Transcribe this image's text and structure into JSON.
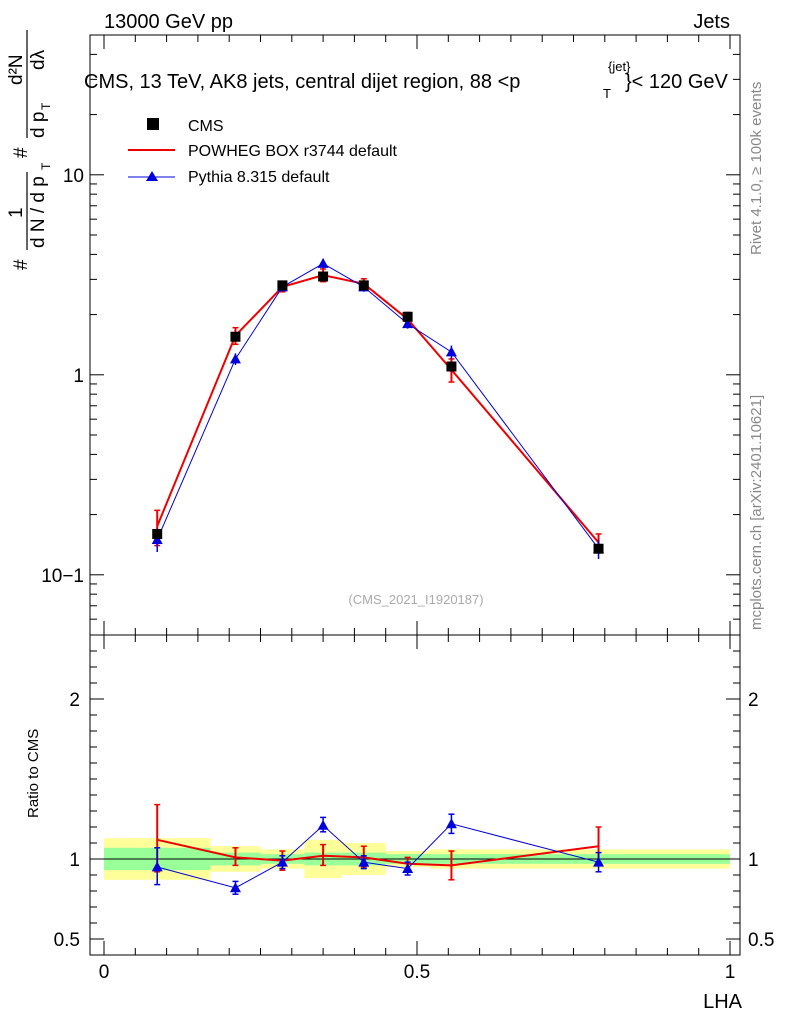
{
  "header": {
    "left": "13000 GeV pp",
    "right": "Jets"
  },
  "title_parts": {
    "main": "CMS, 13 TeV, AK8 jets, central dijet region, 88 <p",
    "sup": "{jet}",
    "sub": "T",
    "tail": "}< 120 GeV"
  },
  "side_labels": {
    "rivet": "Rivet 4.1.0, ≥ 100k events",
    "mcplots": "mcplots.cern.ch [arXiv:2401.10621]"
  },
  "watermark": "(CMS_2021_I1920187)",
  "y_axis_label": {
    "hash1": "#",
    "one": "1",
    "dN": "d N / d p",
    "T1": "T",
    "hash2": "#",
    "d2N": "d²N",
    "dpT": "d p",
    "T2": "T",
    "dlambda": "dλ"
  },
  "ratio_label": "Ratio to CMS",
  "x_label": "LHA",
  "colors": {
    "data": "#000000",
    "powheg": "#ee0000",
    "pythia": "#0000dd",
    "band_inner": "#99ff99",
    "band_outer": "#ffff99"
  },
  "chart_data": {
    "type": "line",
    "x_axis": {
      "label": "LHA",
      "range": [
        0,
        1
      ],
      "ticks": [
        0,
        0.5,
        1
      ],
      "tick_labels": [
        "0",
        "0.5",
        "1"
      ]
    },
    "main_panel": {
      "scale": "log",
      "y_range": [
        0.05,
        50
      ],
      "tick_values": [
        0.1,
        1,
        10
      ],
      "tick_labels": [
        "10−1",
        "1",
        "10"
      ]
    },
    "ratio_panel": {
      "label": "Ratio to CMS",
      "y_range": [
        0.4,
        2.4
      ],
      "tick_values": [
        0.5,
        1,
        2
      ],
      "tick_labels": [
        "0.5",
        "1",
        "2"
      ]
    },
    "legend": {
      "position": "top-left",
      "entries": [
        "CMS",
        "POWHEG BOX r3744 default",
        "Pythia 8.315 default"
      ]
    },
    "bins": [
      {
        "lo": 0.0,
        "hi": 0.17
      },
      {
        "lo": 0.17,
        "hi": 0.25
      },
      {
        "lo": 0.25,
        "hi": 0.32
      },
      {
        "lo": 0.32,
        "hi": 0.38
      },
      {
        "lo": 0.38,
        "hi": 0.45
      },
      {
        "lo": 0.45,
        "hi": 0.52
      },
      {
        "lo": 0.52,
        "hi": 0.6
      },
      {
        "lo": 0.6,
        "hi": 1.0
      }
    ],
    "series": [
      {
        "name": "CMS",
        "style": "markers-square",
        "x": [
          0.085,
          0.21,
          0.285,
          0.35,
          0.415,
          0.485,
          0.555,
          0.79
        ],
        "y": [
          0.16,
          1.55,
          2.8,
          3.1,
          2.8,
          1.95,
          1.1,
          0.135
        ]
      },
      {
        "name": "POWHEG BOX r3744 default",
        "style": "line",
        "x": [
          0.085,
          0.21,
          0.285,
          0.35,
          0.415,
          0.485,
          0.555,
          0.79
        ],
        "y": [
          0.175,
          1.57,
          2.75,
          3.15,
          2.85,
          1.9,
          1.06,
          0.145
        ],
        "err_lo": [
          0.14,
          1.42,
          2.6,
          2.92,
          2.68,
          1.75,
          0.92,
          0.13
        ],
        "err_hi": [
          0.21,
          1.72,
          2.92,
          3.38,
          3.02,
          2.05,
          1.2,
          0.16
        ],
        "ratio": [
          1.12,
          1.01,
          0.99,
          1.02,
          1.01,
          0.97,
          0.96,
          1.08
        ],
        "ratio_lo": [
          0.92,
          0.96,
          0.93,
          0.96,
          0.95,
          0.93,
          0.87,
          0.98
        ],
        "ratio_hi": [
          1.34,
          1.07,
          1.05,
          1.09,
          1.08,
          1.01,
          1.05,
          1.2
        ]
      },
      {
        "name": "Pythia 8.315 default",
        "style": "line-triangle",
        "x": [
          0.085,
          0.21,
          0.285,
          0.35,
          0.415,
          0.485,
          0.555,
          0.79
        ],
        "y": [
          0.15,
          1.2,
          2.75,
          3.6,
          2.75,
          1.8,
          1.3,
          0.135
        ],
        "err_lo": [
          0.13,
          1.12,
          2.62,
          3.4,
          2.6,
          1.7,
          1.2,
          0.12
        ],
        "err_hi": [
          0.17,
          1.28,
          2.88,
          3.8,
          2.9,
          1.9,
          1.4,
          0.15
        ],
        "ratio": [
          0.95,
          0.82,
          0.98,
          1.21,
          0.98,
          0.94,
          1.22,
          0.98
        ],
        "ratio_lo": [
          0.84,
          0.78,
          0.94,
          1.17,
          0.94,
          0.9,
          1.16,
          0.92
        ],
        "ratio_hi": [
          1.07,
          0.86,
          1.02,
          1.26,
          1.02,
          0.98,
          1.28,
          1.04
        ]
      }
    ],
    "uncertainty_band": {
      "inner_lo": [
        0.93,
        0.96,
        0.97,
        0.96,
        0.96,
        0.97,
        0.97,
        0.97
      ],
      "inner_hi": [
        1.07,
        1.04,
        1.03,
        1.04,
        1.04,
        1.03,
        1.03,
        1.03
      ],
      "outer_lo": [
        0.87,
        0.92,
        0.94,
        0.88,
        0.9,
        0.95,
        0.94,
        0.94
      ],
      "outer_hi": [
        1.13,
        1.08,
        1.06,
        1.12,
        1.1,
        1.05,
        1.06,
        1.06
      ]
    }
  }
}
